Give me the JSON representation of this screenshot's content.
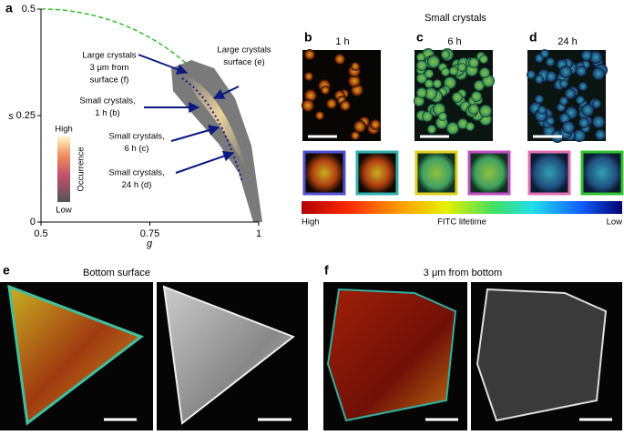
{
  "panel_a": {
    "label": "a",
    "x_label": "g",
    "y_label": "s",
    "xlim": [
      0.5,
      1
    ],
    "ylim": [
      0,
      0.5
    ],
    "xticks": [
      0.5,
      0.75,
      1
    ],
    "yticks": [
      0,
      0.25,
      0.5
    ],
    "colorbar": {
      "title": "Occurrence",
      "high": "High",
      "low": "Low"
    },
    "annotations": [
      {
        "lines": [
          "Large crystals",
          "3 μm from",
          "surface (f)"
        ]
      },
      {
        "lines": [
          "Large crystals",
          "surface (e)"
        ]
      },
      {
        "lines": [
          "Small crystals,",
          "1 h (b)"
        ]
      },
      {
        "lines": [
          "Small crystals,",
          "6 h (c)"
        ]
      },
      {
        "lines": [
          "Small crystals,",
          "24 h (d)"
        ]
      }
    ]
  },
  "panel_bcd": {
    "title": "Small crystals",
    "panels": [
      {
        "label": "b",
        "time": "1 h"
      },
      {
        "label": "c",
        "time": "6 h"
      },
      {
        "label": "d",
        "time": "24 h"
      }
    ],
    "lifetime_bar": {
      "high": "High",
      "title": "FITC lifetime",
      "low": "Low"
    }
  },
  "panel_e": {
    "label": "e",
    "title": "Bottom surface"
  },
  "panel_f": {
    "label": "f",
    "title": "3 μm from bottom"
  }
}
